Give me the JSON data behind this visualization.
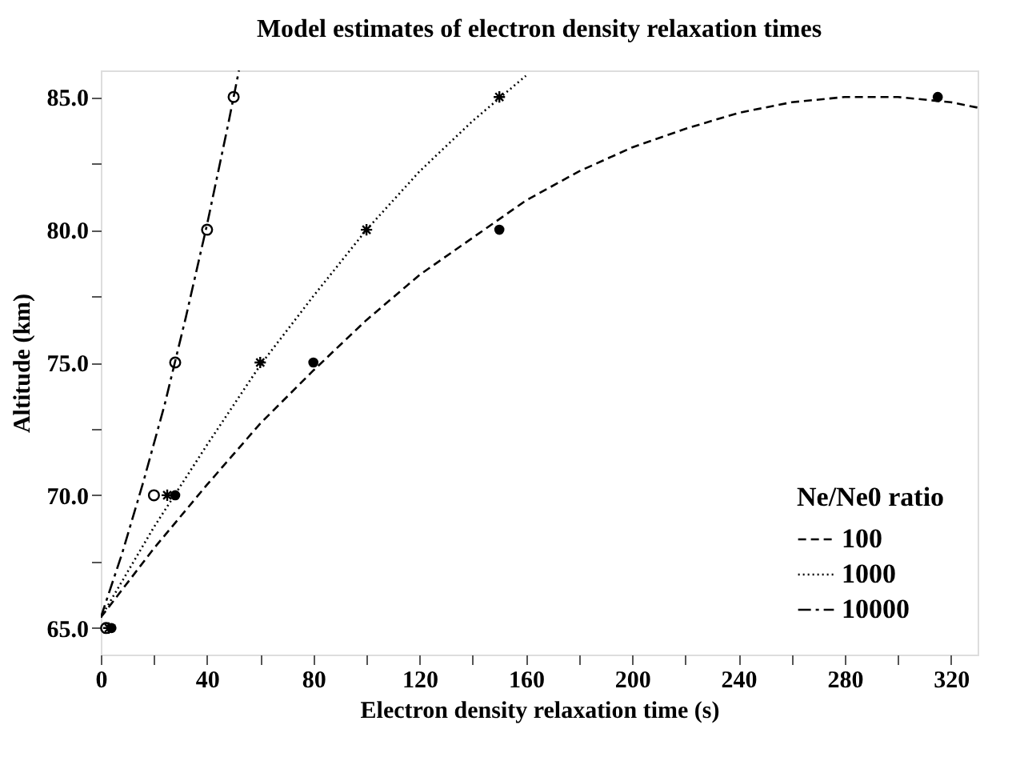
{
  "chart_data": {
    "type": "scatter",
    "title": "Model estimates of electron density relaxation times",
    "xlabel": "Electron density relaxation time (s)",
    "ylabel": "Altitude (km)",
    "legend_title": "Ne/Ne0 ratio",
    "legend": "bottom right",
    "grid": false,
    "xlim": [
      0,
      330
    ],
    "ylim": [
      64,
      86
    ],
    "xticks": [
      0,
      {
        "value": 20,
        "label": null
      },
      40,
      {
        "value": 60,
        "label": null
      },
      80,
      {
        "value": 100,
        "label": null
      },
      120,
      {
        "value": 140,
        "label": null
      },
      160,
      {
        "value": 180,
        "label": null
      },
      200,
      {
        "value": 220,
        "label": null
      },
      240,
      {
        "value": 260,
        "label": null
      },
      280,
      {
        "value": 300,
        "label": null
      },
      320
    ],
    "yticks": [
      {
        "value": 65,
        "label": "65.0"
      },
      {
        "value": 67.5,
        "label": null
      },
      {
        "value": 70,
        "label": "70.0"
      },
      {
        "value": 72.5,
        "label": null
      },
      {
        "value": 75,
        "label": "75.0"
      },
      {
        "value": 77.5,
        "label": null
      },
      {
        "value": 80,
        "label": "80.0"
      },
      {
        "value": 82.5,
        "label": null
      },
      {
        "value": 85,
        "label": "85.0"
      }
    ],
    "series": [
      {
        "marker": "circle",
        "color": "#000000",
        "x": [
          4,
          28,
          80,
          150,
          315
        ],
        "values": [
          65,
          70,
          75,
          80,
          85
        ]
      },
      {
        "marker": "cross",
        "color": "#000000",
        "x": [
          3,
          25,
          60,
          100,
          150
        ],
        "values": [
          65,
          70,
          75,
          80,
          85
        ]
      },
      {
        "marker": "circle",
        "color": "#000000",
        "x": [
          2,
          20,
          28,
          40,
          50
        ],
        "values": [
          65,
          70,
          75,
          80,
          85
        ]
      },
      {
        "type": "line",
        "name": "100",
        "line_style": "dashed",
        "color": "#000000",
        "x": [
          0,
          20,
          40,
          60,
          80,
          100,
          120,
          140,
          160,
          180,
          200,
          220,
          240,
          260,
          280,
          300,
          320,
          330
        ],
        "values": [
          65.4,
          68.0,
          70.4,
          72.7,
          74.7,
          76.6,
          78.3,
          79.7,
          81.1,
          82.2,
          83.1,
          83.8,
          84.4,
          84.8,
          85.0,
          85.0,
          84.8,
          84.6
        ]
      },
      {
        "type": "line",
        "name": "1000",
        "line_style": "dotted",
        "color": "#000000",
        "x": [
          0,
          20,
          40,
          60,
          80,
          100,
          120,
          140,
          160
        ],
        "values": [
          65.4,
          68.8,
          71.9,
          74.9,
          77.5,
          80.0,
          82.2,
          84.1,
          85.8
        ]
      },
      {
        "type": "line",
        "name": "10000",
        "line_style": "dashdot",
        "color": "#000000",
        "x": [
          0,
          8,
          16,
          24,
          32,
          40,
          48,
          52
        ],
        "values": [
          65.4,
          67.8,
          70.5,
          73.4,
          76.7,
          80.2,
          84.0,
          86.0
        ]
      }
    ]
  }
}
